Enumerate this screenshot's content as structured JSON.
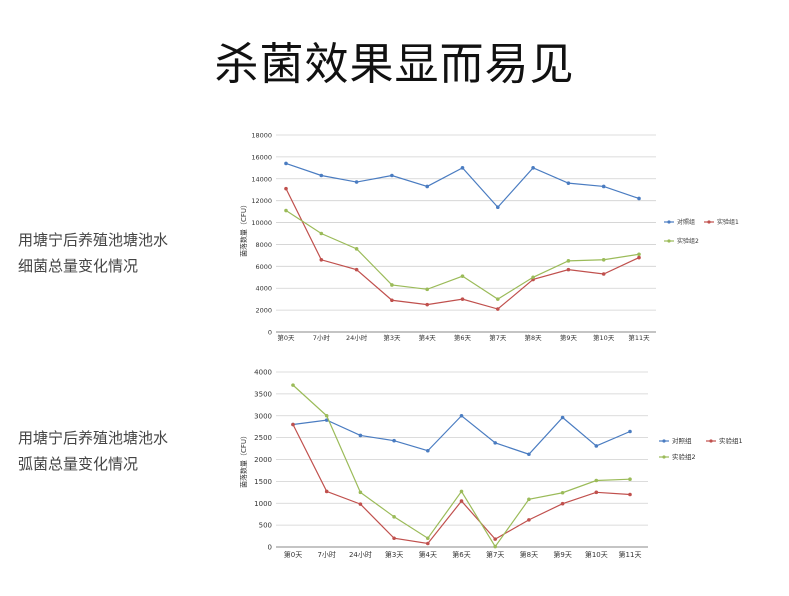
{
  "title": "杀菌效果显而易见",
  "captions": [
    {
      "line1": "用塘宁后养殖池塘池水",
      "line2": "细菌总量变化情况"
    },
    {
      "line1": "用塘宁后养殖池塘池水",
      "line2": "弧菌总量变化情况"
    }
  ],
  "chart_data": [
    {
      "type": "line",
      "categories": [
        "第0天",
        "7小时",
        "24小时",
        "第3天",
        "第4天",
        "第6天",
        "第7天",
        "第8天",
        "第9天",
        "第10天",
        "第11天"
      ],
      "ylabel": "菌落数量（CFU）",
      "ylim": [
        0,
        18000
      ],
      "yticks": [
        0,
        2000,
        4000,
        6000,
        8000,
        10000,
        12000,
        14000,
        16000,
        18000
      ],
      "grid": true,
      "legend": "right",
      "series": [
        {
          "name": "对照组",
          "color": "#4a7cc1",
          "values": [
            15400,
            14300,
            13700,
            14300,
            13300,
            15000,
            11400,
            15000,
            13600,
            13300,
            12200
          ]
        },
        {
          "name": "实验组1",
          "color": "#c0504d",
          "values": [
            13100,
            6600,
            5700,
            2900,
            2500,
            3000,
            2100,
            4800,
            5700,
            5300,
            6800
          ]
        },
        {
          "name": "实验组2",
          "color": "#9bbb59",
          "values": [
            11100,
            9000,
            7600,
            4300,
            3900,
            5100,
            3000,
            5000,
            6500,
            6600,
            7100
          ]
        }
      ]
    },
    {
      "type": "line",
      "categories": [
        "第0天",
        "7小时",
        "24小时",
        "第3天",
        "第4天",
        "第6天",
        "第7天",
        "第8天",
        "第9天",
        "第10天",
        "第11天"
      ],
      "ylabel": "菌落数量（CFU）",
      "ylim": [
        0,
        4000
      ],
      "yticks": [
        0,
        500,
        1000,
        1500,
        2000,
        2500,
        3000,
        3500,
        4000
      ],
      "grid": true,
      "legend": "right",
      "series": [
        {
          "name": "对照组",
          "color": "#4a7cc1",
          "values": [
            2800,
            2900,
            2550,
            2430,
            2200,
            3000,
            2380,
            2120,
            2960,
            2310,
            2640
          ]
        },
        {
          "name": "实验组1",
          "color": "#c0504d",
          "values": [
            2800,
            1270,
            980,
            200,
            80,
            1050,
            180,
            620,
            990,
            1250,
            1200
          ]
        },
        {
          "name": "实验组2",
          "color": "#9bbb59",
          "values": [
            3700,
            3000,
            1250,
            690,
            200,
            1270,
            10,
            1090,
            1240,
            1520,
            1550
          ]
        }
      ]
    }
  ]
}
